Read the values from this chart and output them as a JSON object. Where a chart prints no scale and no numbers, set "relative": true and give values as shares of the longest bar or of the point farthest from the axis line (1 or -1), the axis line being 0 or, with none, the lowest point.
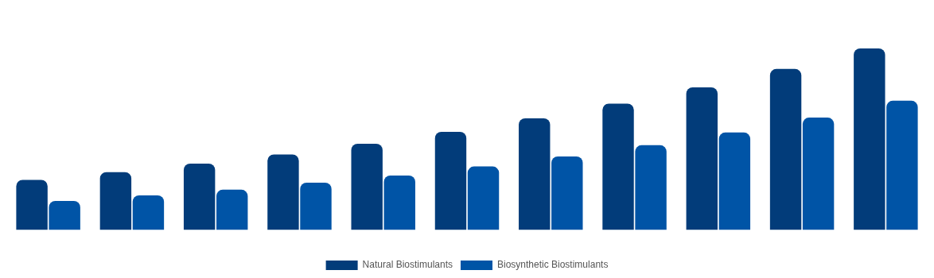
{
  "chart_data": {
    "type": "bar",
    "relative": true,
    "categories": [
      null,
      null,
      null,
      null,
      null,
      null,
      null,
      null,
      null,
      null,
      null
    ],
    "legend": "bottom",
    "grid": false,
    "series": [
      {
        "name": "Natural Biostimulants",
        "color": "#023c7a",
        "values": [
          0.276,
          0.319,
          0.366,
          0.416,
          0.475,
          0.541,
          0.615,
          0.696,
          0.786,
          0.887,
          1
        ]
      },
      {
        "name": "Biosynthetic Biostimulants",
        "color": "#0054a6",
        "values": [
          0.16,
          0.191,
          0.222,
          0.261,
          0.3,
          0.35,
          0.405,
          0.467,
          0.537,
          0.619,
          0.712
        ]
      }
    ]
  }
}
